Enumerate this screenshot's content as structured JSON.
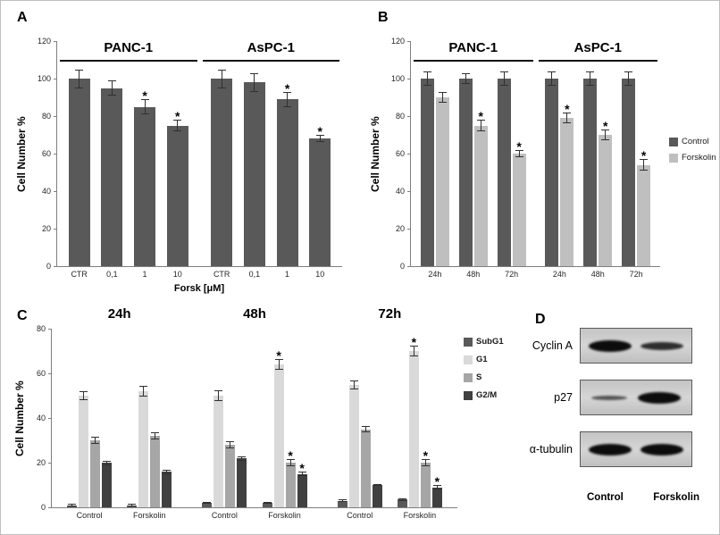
{
  "sig_marker": "*",
  "chart_data": [
    {
      "panel": "A",
      "type": "bar",
      "ylabel": "Cell Number %",
      "xlabel": "Forsk [μM]",
      "ylim": [
        0,
        120
      ],
      "yticks": [
        0,
        20,
        40,
        60,
        80,
        100,
        120
      ],
      "bar_color": "#595959",
      "groups": [
        {
          "name": "PANC-1",
          "bars": [
            {
              "label": "CTR",
              "value": 100,
              "error": 5,
              "sig": false
            },
            {
              "label": "0,1",
              "value": 95,
              "error": 4,
              "sig": false
            },
            {
              "label": "1",
              "value": 85,
              "error": 4,
              "sig": true
            },
            {
              "label": "10",
              "value": 75,
              "error": 3,
              "sig": true
            }
          ]
        },
        {
          "name": "AsPC-1",
          "bars": [
            {
              "label": "CTR",
              "value": 100,
              "error": 5,
              "sig": false
            },
            {
              "label": "0,1",
              "value": 98,
              "error": 5,
              "sig": false
            },
            {
              "label": "1",
              "value": 89,
              "error": 4,
              "sig": true
            },
            {
              "label": "10",
              "value": 68,
              "error": 2,
              "sig": true
            }
          ]
        }
      ]
    },
    {
      "panel": "B",
      "type": "bar",
      "ylabel": "Cell Number %",
      "ylim": [
        0,
        120
      ],
      "yticks": [
        0,
        20,
        40,
        60,
        80,
        100,
        120
      ],
      "series": [
        "Control",
        "Forskolin"
      ],
      "series_colors": [
        "#595959",
        "#bfbfbf"
      ],
      "groups": [
        {
          "name": "PANC-1",
          "categories": [
            {
              "label": "24h",
              "values": [
                100,
                90
              ],
              "errors": [
                4,
                3
              ],
              "sig": [
                false,
                false
              ]
            },
            {
              "label": "48h",
              "values": [
                100,
                75
              ],
              "errors": [
                3,
                3
              ],
              "sig": [
                false,
                true
              ]
            },
            {
              "label": "72h",
              "values": [
                100,
                60
              ],
              "errors": [
                4,
                2
              ],
              "sig": [
                false,
                true
              ]
            }
          ]
        },
        {
          "name": "AsPC-1",
          "categories": [
            {
              "label": "24h",
              "values": [
                100,
                79
              ],
              "errors": [
                4,
                3
              ],
              "sig": [
                false,
                true
              ]
            },
            {
              "label": "48h",
              "values": [
                100,
                70
              ],
              "errors": [
                4,
                3
              ],
              "sig": [
                false,
                true
              ]
            },
            {
              "label": "72h",
              "values": [
                100,
                54
              ],
              "errors": [
                4,
                3
              ],
              "sig": [
                false,
                true
              ]
            }
          ]
        }
      ]
    },
    {
      "panel": "C",
      "type": "bar",
      "ylabel": "Cell Number %",
      "ylim": [
        0,
        80
      ],
      "yticks": [
        0,
        20,
        40,
        60,
        80
      ],
      "series": [
        "SubG1",
        "G1",
        "S",
        "G2/M"
      ],
      "series_colors": [
        "#595959",
        "#d9d9d9",
        "#a6a6a6",
        "#404040"
      ],
      "groups": [
        {
          "name": "24h",
          "clusters": [
            {
              "label": "Control",
              "values": [
                1,
                50,
                30,
                20
              ],
              "errors": [
                0.5,
                2,
                1.5,
                1
              ],
              "sig": [
                false,
                false,
                false,
                false
              ]
            },
            {
              "label": "Forskolin",
              "values": [
                1,
                52,
                32,
                16
              ],
              "errors": [
                0.5,
                2.5,
                1.5,
                1
              ],
              "sig": [
                false,
                false,
                false,
                false
              ]
            }
          ]
        },
        {
          "name": "48h",
          "clusters": [
            {
              "label": "Control",
              "values": [
                2,
                50,
                28,
                22
              ],
              "errors": [
                0.5,
                2.5,
                1.5,
                1
              ],
              "sig": [
                false,
                false,
                false,
                false
              ]
            },
            {
              "label": "Forskolin",
              "values": [
                2,
                64,
                20,
                15
              ],
              "errors": [
                0.5,
                2.5,
                1.5,
                1
              ],
              "sig": [
                false,
                true,
                true,
                true
              ]
            }
          ]
        },
        {
          "name": "72h",
          "clusters": [
            {
              "label": "Control",
              "values": [
                3,
                55,
                35,
                10
              ],
              "errors": [
                0.5,
                2,
                1.5,
                0.5
              ],
              "sig": [
                false,
                false,
                false,
                false
              ]
            },
            {
              "label": "Forskolin",
              "values": [
                3.5,
                70,
                20,
                9
              ],
              "errors": [
                0.5,
                2.5,
                1.5,
                1
              ],
              "sig": [
                false,
                true,
                true,
                true
              ]
            }
          ]
        }
      ]
    },
    {
      "panel": "D",
      "type": "blot",
      "blots": [
        {
          "label": "Cyclin A",
          "lanes": [
            "strong",
            "medium"
          ]
        },
        {
          "label": "p27",
          "lanes": [
            "weak",
            "strong"
          ]
        },
        {
          "label": "α-tubulin",
          "lanes": [
            "strong",
            "strong"
          ]
        }
      ],
      "lane_labels": [
        "Control",
        "Forskolin"
      ]
    }
  ]
}
